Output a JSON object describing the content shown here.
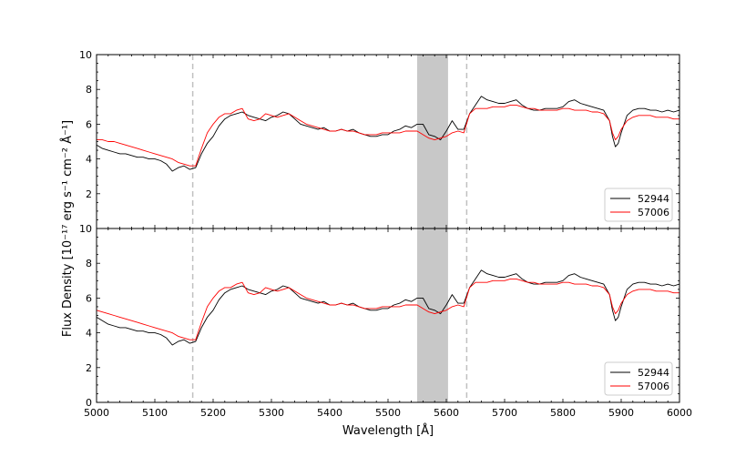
{
  "chart_data": [
    {
      "type": "line",
      "panel": "top",
      "xlim": [
        5000,
        6000
      ],
      "ylim": [
        0,
        10
      ],
      "xticks": [
        5000,
        5100,
        5200,
        5300,
        5400,
        5500,
        5600,
        5700,
        5800,
        5900,
        6000
      ],
      "yticks": [
        2,
        4,
        6,
        8,
        10
      ],
      "xlabel": "",
      "ylabel": "",
      "shaded_region": [
        5550,
        5603
      ],
      "vlines": [
        5165,
        5635
      ],
      "legend": {
        "placement": "lower-right",
        "entries": [
          "52944",
          "57006"
        ]
      },
      "series": [
        {
          "name": "52944",
          "color": "#000000",
          "x": [
            5000,
            5010,
            5020,
            5030,
            5040,
            5050,
            5060,
            5070,
            5080,
            5090,
            5100,
            5110,
            5120,
            5130,
            5140,
            5150,
            5160,
            5170,
            5180,
            5190,
            5200,
            5210,
            5220,
            5230,
            5240,
            5250,
            5260,
            5270,
            5280,
            5290,
            5300,
            5310,
            5320,
            5330,
            5340,
            5350,
            5360,
            5370,
            5380,
            5390,
            5400,
            5410,
            5420,
            5430,
            5440,
            5450,
            5460,
            5470,
            5480,
            5490,
            5500,
            5510,
            5520,
            5530,
            5540,
            5550,
            5560,
            5570,
            5580,
            5590,
            5600,
            5610,
            5620,
            5630,
            5640,
            5650,
            5660,
            5670,
            5680,
            5690,
            5700,
            5710,
            5720,
            5730,
            5740,
            5750,
            5760,
            5770,
            5780,
            5790,
            5800,
            5810,
            5820,
            5830,
            5840,
            5850,
            5860,
            5870,
            5880,
            5885,
            5890,
            5895,
            5900,
            5910,
            5920,
            5930,
            5940,
            5950,
            5960,
            5970,
            5980,
            5990,
            6000
          ],
          "values": [
            4.8,
            4.6,
            4.5,
            4.4,
            4.3,
            4.3,
            4.2,
            4.1,
            4.1,
            4.0,
            4.0,
            3.9,
            3.7,
            3.3,
            3.5,
            3.6,
            3.4,
            3.5,
            4.3,
            4.9,
            5.3,
            5.9,
            6.3,
            6.5,
            6.6,
            6.7,
            6.5,
            6.4,
            6.3,
            6.2,
            6.4,
            6.5,
            6.7,
            6.6,
            6.3,
            6.0,
            5.9,
            5.8,
            5.7,
            5.8,
            5.6,
            5.6,
            5.7,
            5.6,
            5.7,
            5.5,
            5.4,
            5.3,
            5.3,
            5.4,
            5.4,
            5.6,
            5.7,
            5.9,
            5.8,
            6.0,
            6.0,
            5.4,
            5.3,
            5.1,
            5.6,
            6.2,
            5.7,
            5.7,
            6.6,
            7.1,
            7.6,
            7.4,
            7.3,
            7.2,
            7.2,
            7.3,
            7.4,
            7.1,
            6.9,
            6.8,
            6.8,
            6.9,
            6.9,
            6.9,
            7.0,
            7.3,
            7.4,
            7.2,
            7.1,
            7.0,
            6.9,
            6.8,
            6.2,
            5.3,
            4.7,
            4.9,
            5.5,
            6.5,
            6.8,
            6.9,
            6.9,
            6.8,
            6.8,
            6.7,
            6.8,
            6.7,
            6.8
          ]
        },
        {
          "name": "57006",
          "color": "#ff0000",
          "x": [
            5000,
            5010,
            5020,
            5030,
            5040,
            5050,
            5060,
            5070,
            5080,
            5090,
            5100,
            5110,
            5120,
            5130,
            5140,
            5150,
            5160,
            5170,
            5180,
            5190,
            5200,
            5210,
            5220,
            5230,
            5240,
            5250,
            5260,
            5270,
            5280,
            5290,
            5300,
            5310,
            5320,
            5330,
            5340,
            5350,
            5360,
            5370,
            5380,
            5390,
            5400,
            5410,
            5420,
            5430,
            5440,
            5450,
            5460,
            5470,
            5480,
            5490,
            5500,
            5510,
            5520,
            5530,
            5540,
            5550,
            5560,
            5570,
            5580,
            5590,
            5600,
            5610,
            5620,
            5630,
            5640,
            5650,
            5660,
            5670,
            5680,
            5690,
            5700,
            5710,
            5720,
            5730,
            5740,
            5750,
            5760,
            5770,
            5780,
            5790,
            5800,
            5810,
            5820,
            5830,
            5840,
            5850,
            5860,
            5870,
            5880,
            5885,
            5890,
            5895,
            5900,
            5910,
            5920,
            5930,
            5940,
            5950,
            5960,
            5970,
            5980,
            5990,
            6000
          ],
          "values": [
            5.1,
            5.1,
            5.0,
            5.0,
            4.9,
            4.8,
            4.7,
            4.6,
            4.5,
            4.4,
            4.3,
            4.2,
            4.1,
            4.0,
            3.8,
            3.7,
            3.6,
            3.6,
            4.6,
            5.5,
            6.0,
            6.4,
            6.6,
            6.6,
            6.8,
            6.9,
            6.3,
            6.2,
            6.3,
            6.6,
            6.5,
            6.4,
            6.5,
            6.6,
            6.4,
            6.2,
            6.0,
            5.9,
            5.8,
            5.7,
            5.6,
            5.6,
            5.7,
            5.6,
            5.6,
            5.5,
            5.4,
            5.4,
            5.4,
            5.5,
            5.5,
            5.5,
            5.5,
            5.6,
            5.6,
            5.6,
            5.4,
            5.2,
            5.1,
            5.2,
            5.3,
            5.5,
            5.6,
            5.5,
            6.6,
            6.9,
            6.9,
            6.9,
            7.0,
            7.0,
            7.0,
            7.1,
            7.1,
            7.0,
            6.9,
            6.9,
            6.8,
            6.8,
            6.8,
            6.8,
            6.9,
            6.9,
            6.8,
            6.8,
            6.8,
            6.7,
            6.7,
            6.6,
            6.2,
            5.5,
            5.1,
            5.3,
            5.7,
            6.2,
            6.4,
            6.5,
            6.5,
            6.5,
            6.4,
            6.4,
            6.4,
            6.3,
            6.3
          ]
        }
      ]
    },
    {
      "type": "line",
      "panel": "bottom",
      "xlim": [
        5000,
        6000
      ],
      "ylim": [
        0,
        10
      ],
      "xticks": [
        5000,
        5100,
        5200,
        5300,
        5400,
        5500,
        5600,
        5700,
        5800,
        5900,
        6000
      ],
      "yticks": [
        0,
        2,
        4,
        6,
        8,
        10
      ],
      "xlabel": "Wavelength [Å]",
      "ylabel": "",
      "shaded_region": [
        5550,
        5603
      ],
      "vlines": [
        5165,
        5635
      ],
      "legend": {
        "placement": "lower-right",
        "entries": [
          "52944",
          "57006"
        ]
      },
      "series": [
        {
          "name": "52944",
          "color": "#000000",
          "x": [
            5000,
            5010,
            5020,
            5030,
            5040,
            5050,
            5060,
            5070,
            5080,
            5090,
            5100,
            5110,
            5120,
            5130,
            5140,
            5150,
            5160,
            5170,
            5180,
            5190,
            5200,
            5210,
            5220,
            5230,
            5240,
            5250,
            5260,
            5270,
            5280,
            5290,
            5300,
            5310,
            5320,
            5330,
            5340,
            5350,
            5360,
            5370,
            5380,
            5390,
            5400,
            5410,
            5420,
            5430,
            5440,
            5450,
            5460,
            5470,
            5480,
            5490,
            5500,
            5510,
            5520,
            5530,
            5540,
            5550,
            5560,
            5570,
            5580,
            5590,
            5600,
            5610,
            5620,
            5630,
            5640,
            5650,
            5660,
            5670,
            5680,
            5690,
            5700,
            5710,
            5720,
            5730,
            5740,
            5750,
            5760,
            5770,
            5780,
            5790,
            5800,
            5810,
            5820,
            5830,
            5840,
            5850,
            5860,
            5870,
            5880,
            5885,
            5890,
            5895,
            5900,
            5910,
            5920,
            5930,
            5940,
            5950,
            5960,
            5970,
            5980,
            5990,
            6000
          ],
          "values": [
            4.9,
            4.7,
            4.5,
            4.4,
            4.3,
            4.3,
            4.2,
            4.1,
            4.1,
            4.0,
            4.0,
            3.9,
            3.7,
            3.3,
            3.5,
            3.6,
            3.4,
            3.5,
            4.3,
            4.9,
            5.3,
            5.9,
            6.3,
            6.5,
            6.6,
            6.7,
            6.5,
            6.4,
            6.3,
            6.2,
            6.4,
            6.5,
            6.7,
            6.6,
            6.3,
            6.0,
            5.9,
            5.8,
            5.7,
            5.8,
            5.6,
            5.6,
            5.7,
            5.6,
            5.7,
            5.5,
            5.4,
            5.3,
            5.3,
            5.4,
            5.4,
            5.6,
            5.7,
            5.9,
            5.8,
            6.0,
            6.0,
            5.4,
            5.3,
            5.1,
            5.6,
            6.2,
            5.7,
            5.7,
            6.6,
            7.1,
            7.6,
            7.4,
            7.3,
            7.2,
            7.2,
            7.3,
            7.4,
            7.1,
            6.9,
            6.8,
            6.8,
            6.9,
            6.9,
            6.9,
            7.0,
            7.3,
            7.4,
            7.2,
            7.1,
            7.0,
            6.9,
            6.8,
            6.2,
            5.3,
            4.7,
            4.9,
            5.5,
            6.5,
            6.8,
            6.9,
            6.9,
            6.8,
            6.8,
            6.7,
            6.8,
            6.7,
            6.8
          ]
        },
        {
          "name": "57006",
          "color": "#ff0000",
          "x": [
            5000,
            5010,
            5020,
            5030,
            5040,
            5050,
            5060,
            5070,
            5080,
            5090,
            5100,
            5110,
            5120,
            5130,
            5140,
            5150,
            5160,
            5170,
            5180,
            5190,
            5200,
            5210,
            5220,
            5230,
            5240,
            5250,
            5260,
            5270,
            5280,
            5290,
            5300,
            5310,
            5320,
            5330,
            5340,
            5350,
            5360,
            5370,
            5380,
            5390,
            5400,
            5410,
            5420,
            5430,
            5440,
            5450,
            5460,
            5470,
            5480,
            5490,
            5500,
            5510,
            5520,
            5530,
            5540,
            5550,
            5560,
            5570,
            5580,
            5590,
            5600,
            5610,
            5620,
            5630,
            5640,
            5650,
            5660,
            5670,
            5680,
            5690,
            5700,
            5710,
            5720,
            5730,
            5740,
            5750,
            5760,
            5770,
            5780,
            5790,
            5800,
            5810,
            5820,
            5830,
            5840,
            5850,
            5860,
            5870,
            5880,
            5885,
            5890,
            5895,
            5900,
            5910,
            5920,
            5930,
            5940,
            5950,
            5960,
            5970,
            5980,
            5990,
            6000
          ],
          "values": [
            5.3,
            5.2,
            5.1,
            5.0,
            4.9,
            4.8,
            4.7,
            4.6,
            4.5,
            4.4,
            4.3,
            4.2,
            4.1,
            4.0,
            3.8,
            3.7,
            3.6,
            3.6,
            4.6,
            5.5,
            6.0,
            6.4,
            6.6,
            6.6,
            6.8,
            6.9,
            6.3,
            6.2,
            6.3,
            6.6,
            6.5,
            6.4,
            6.5,
            6.6,
            6.4,
            6.2,
            6.0,
            5.9,
            5.8,
            5.7,
            5.6,
            5.6,
            5.7,
            5.6,
            5.6,
            5.5,
            5.4,
            5.4,
            5.4,
            5.5,
            5.5,
            5.5,
            5.5,
            5.6,
            5.6,
            5.6,
            5.4,
            5.2,
            5.1,
            5.2,
            5.3,
            5.5,
            5.6,
            5.5,
            6.6,
            6.9,
            6.9,
            6.9,
            7.0,
            7.0,
            7.0,
            7.1,
            7.1,
            7.0,
            6.9,
            6.9,
            6.8,
            6.8,
            6.8,
            6.8,
            6.9,
            6.9,
            6.8,
            6.8,
            6.8,
            6.7,
            6.7,
            6.6,
            6.2,
            5.5,
            5.1,
            5.3,
            5.7,
            6.2,
            6.4,
            6.5,
            6.5,
            6.5,
            6.4,
            6.4,
            6.4,
            6.3,
            6.3
          ]
        }
      ]
    }
  ],
  "shared_ylabel": "Flux Density [10⁻¹⁷ erg s⁻¹ cm⁻² Å⁻¹]",
  "colors": {
    "shade": "#c8c8c8",
    "vline": "#c0c0c0"
  }
}
